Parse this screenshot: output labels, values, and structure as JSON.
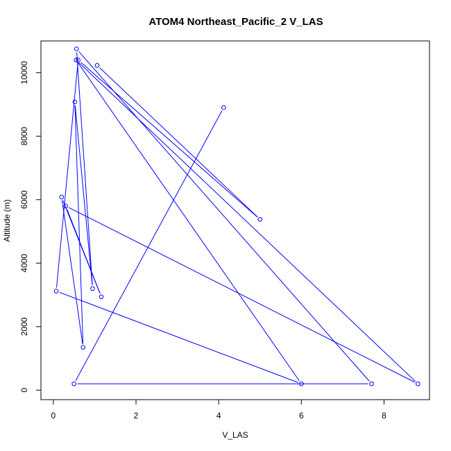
{
  "chart_data": {
    "type": "line",
    "title": "ATOM4 Northeast_Pacific_2 V_LAS",
    "xlabel": "V_LAS",
    "ylabel": "Altitude (m)",
    "xlim": [
      -0.3,
      9.1
    ],
    "ylim": [
      -300,
      11000
    ],
    "xticks": [
      0,
      2,
      4,
      6,
      8
    ],
    "yticks": [
      0,
      2000,
      4000,
      6000,
      8000,
      10000
    ],
    "line_color": "#0000ff",
    "point_marker": "open-circle",
    "grid": false,
    "legend": "none",
    "series": [
      {
        "x": [
          4.12,
          0.5,
          7.7,
          0.56,
          0.95,
          0.52,
          0.72,
          0.2,
          1.16,
          0.3,
          8.82,
          0.55,
          6.0,
          0.07,
          0.6,
          5.0,
          1.06
        ],
        "y": [
          8900,
          200,
          200,
          10750,
          3200,
          9080,
          1350,
          6080,
          2940,
          5800,
          200,
          10400,
          200,
          3120,
          10400,
          5380,
          10230
        ]
      }
    ]
  }
}
